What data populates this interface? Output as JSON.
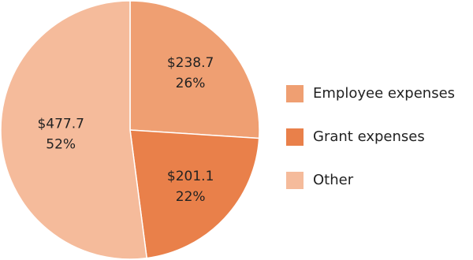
{
  "chart_data": {
    "type": "pie",
    "categories": [
      "Employee expenses",
      "Grant expenses",
      "Other"
    ],
    "values": [
      238.7,
      201.1,
      477.7
    ],
    "value_labels": [
      "$238.7",
      "$201.1",
      "$477.7"
    ],
    "percents": [
      26,
      22,
      52
    ],
    "percent_labels": [
      "26%",
      "22%",
      "52%"
    ],
    "colors": [
      "#ef9f72",
      "#e9804a",
      "#f5bb9b"
    ],
    "legend": "right"
  }
}
